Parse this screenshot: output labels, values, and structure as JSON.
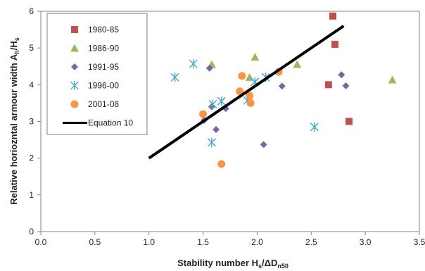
{
  "chart_data": {
    "type": "scatter",
    "xlim": [
      0,
      3.5
    ],
    "ylim": [
      0,
      6
    ],
    "x_ticks": [
      "0.0",
      "0.5",
      "1.0",
      "1.5",
      "2.0",
      "2.5",
      "3.0",
      "3.5"
    ],
    "y_ticks": [
      "0",
      "1",
      "2",
      "3",
      "4",
      "5",
      "6"
    ],
    "xlabel": {
      "main": "Stability number H",
      "sub1": "s",
      "mid": "/ΔD",
      "sub2": "n50"
    },
    "ylabel": {
      "main": "Relative horiozntal armour width A",
      "sub1": "h",
      "mid": "/H",
      "sub2": "s"
    },
    "grid": false,
    "legend_position": "top-left",
    "series": [
      {
        "name": "1980-85",
        "marker": "square",
        "color": "#c0504d",
        "points": [
          [
            2.7,
            5.87
          ],
          [
            2.72,
            5.1
          ],
          [
            2.66,
            4.0
          ],
          [
            2.85,
            3.0
          ]
        ]
      },
      {
        "name": "1986-90",
        "marker": "triangle",
        "color": "#9bbb59",
        "points": [
          [
            1.58,
            4.55
          ],
          [
            1.98,
            4.75
          ],
          [
            1.93,
            4.2
          ],
          [
            2.37,
            4.55
          ],
          [
            3.25,
            4.13
          ]
        ]
      },
      {
        "name": "1991-95",
        "marker": "diamond",
        "color": "#8064a2",
        "points": [
          [
            1.56,
            4.45
          ],
          [
            1.58,
            3.4
          ],
          [
            1.51,
            3.03
          ],
          [
            1.62,
            2.78
          ],
          [
            1.71,
            3.35
          ],
          [
            2.06,
            2.37
          ],
          [
            2.23,
            3.96
          ],
          [
            2.78,
            4.27
          ],
          [
            2.82,
            3.97
          ]
        ]
      },
      {
        "name": "1996-00",
        "marker": "asterisk",
        "color": "#4bacc6",
        "points": [
          [
            1.24,
            4.2
          ],
          [
            1.41,
            4.57
          ],
          [
            1.59,
            3.47
          ],
          [
            1.58,
            2.43
          ],
          [
            1.67,
            3.55
          ],
          [
            1.91,
            3.57
          ],
          [
            1.98,
            4.08
          ],
          [
            2.08,
            4.2
          ],
          [
            2.53,
            2.85
          ]
        ]
      },
      {
        "name": "2001-08",
        "marker": "circle",
        "color": "#f79646",
        "points": [
          [
            1.5,
            3.2
          ],
          [
            1.67,
            1.84
          ],
          [
            1.84,
            3.82
          ],
          [
            1.86,
            4.24
          ],
          [
            1.93,
            3.7
          ],
          [
            1.94,
            3.5
          ],
          [
            2.2,
            4.35
          ]
        ]
      },
      {
        "name": "Equation 10",
        "marker": "line",
        "color": "#000000",
        "points": [
          [
            1.0,
            2.0
          ],
          [
            2.8,
            5.6
          ]
        ]
      }
    ]
  }
}
